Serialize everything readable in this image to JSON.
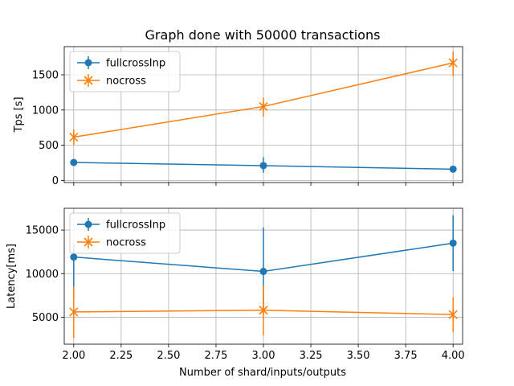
{
  "figure": {
    "title": "Graph done with 50000 transactions",
    "xlabel": "Number of shard/inputs/outputs"
  },
  "colors": {
    "blue": "#1f77b4",
    "orange": "#ff7f0e",
    "grid": "#b0b0b0"
  },
  "chart_data": [
    {
      "type": "line",
      "title": "Graph done with 50000 transactions",
      "xlabel": "",
      "ylabel": "Tps [s]",
      "xlim": [
        1.95,
        4.05
      ],
      "ylim": [
        -30,
        1900
      ],
      "xticks": [
        2.0,
        2.25,
        2.5,
        2.75,
        3.0,
        3.25,
        3.5,
        3.75,
        4.0
      ],
      "yticks": [
        0,
        500,
        1000,
        1500
      ],
      "yticklabels": [
        "0",
        "500",
        "1000",
        "1500"
      ],
      "show_xticklabels": false,
      "grid": true,
      "legend": "top-left",
      "series": [
        {
          "name": "fullcrossInp",
          "color": "#1f77b4",
          "marker": "circle",
          "x": [
            2,
            3,
            4
          ],
          "y": [
            255,
            210,
            160
          ],
          "yerr_low": [
            0,
            100,
            0
          ],
          "yerr_high": [
            0,
            120,
            0
          ]
        },
        {
          "name": "nocross",
          "color": "#ff7f0e",
          "marker": "x",
          "x": [
            2,
            3,
            4
          ],
          "y": [
            615,
            1050,
            1670
          ],
          "yerr_low": [
            110,
            140,
            190
          ],
          "yerr_high": [
            110,
            130,
            160
          ]
        }
      ]
    },
    {
      "type": "line",
      "title": "",
      "xlabel": "Number of shard/inputs/outputs",
      "ylabel": "Latency[ms]",
      "xlim": [
        1.95,
        4.05
      ],
      "ylim": [
        1900,
        17500
      ],
      "xticks": [
        2.0,
        2.25,
        2.5,
        2.75,
        3.0,
        3.25,
        3.5,
        3.75,
        4.0
      ],
      "xticklabels": [
        "2.00",
        "2.25",
        "2.50",
        "2.75",
        "3.00",
        "3.25",
        "3.50",
        "3.75",
        "4.00"
      ],
      "yticks": [
        5000,
        10000,
        15000
      ],
      "yticklabels": [
        "5000",
        "10000",
        "15000"
      ],
      "show_xticklabels": true,
      "grid": true,
      "legend": "top-left",
      "series": [
        {
          "name": "fullcrossInp",
          "color": "#1f77b4",
          "marker": "circle",
          "x": [
            2,
            3,
            4
          ],
          "y": [
            11900,
            10250,
            13500
          ],
          "yerr_low": [
            4700,
            4650,
            3200
          ],
          "yerr_high": [
            1550,
            5050,
            3200
          ]
        },
        {
          "name": "nocross",
          "color": "#ff7f0e",
          "marker": "x",
          "x": [
            2,
            3,
            4
          ],
          "y": [
            5600,
            5800,
            5300
          ],
          "yerr_low": [
            3000,
            2900,
            2000
          ],
          "yerr_high": [
            2950,
            2900,
            2000
          ]
        }
      ]
    }
  ]
}
